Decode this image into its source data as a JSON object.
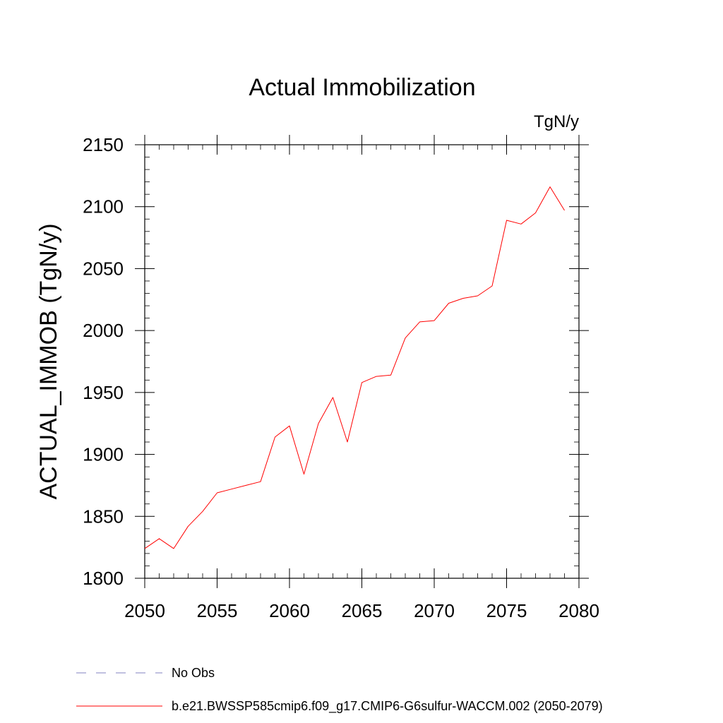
{
  "chart_data": {
    "type": "line",
    "title": "Actual Immobilization",
    "units_label": "TgN/y",
    "xlabel": "",
    "ylabel": "ACTUAL_IMMOB  (TgN/y)",
    "xlim": [
      2050,
      2080
    ],
    "ylim": [
      1800,
      2150
    ],
    "x_ticks": [
      2050,
      2055,
      2060,
      2065,
      2070,
      2075,
      2080
    ],
    "x_tick_labels": [
      "2050",
      "2055",
      "2060",
      "2065",
      "2070",
      "2075",
      "2080"
    ],
    "y_ticks": [
      1800,
      1850,
      1900,
      1950,
      2000,
      2050,
      2100,
      2150
    ],
    "y_tick_labels": [
      "1800",
      "1850",
      "1900",
      "1950",
      "2000",
      "2050",
      "2100",
      "2150"
    ],
    "grid": false,
    "x": [
      2050,
      2051,
      2052,
      2053,
      2054,
      2055,
      2056,
      2057,
      2058,
      2059,
      2060,
      2061,
      2062,
      2063,
      2064,
      2065,
      2066,
      2067,
      2068,
      2069,
      2070,
      2071,
      2072,
      2073,
      2074,
      2075,
      2076,
      2077,
      2078,
      2079
    ],
    "series": [
      {
        "name": "b.e21.BWSSP585cmip6.f09_g17.CMIP6-G6sulfur-WACCM.002 (2050-2079)",
        "color": "#ff0000",
        "values": [
          1824,
          1832,
          1824,
          1842,
          1854,
          1869,
          1872,
          1875,
          1878,
          1914,
          1923,
          1884,
          1925,
          1946,
          1910,
          1958,
          1963,
          1964,
          1994,
          2007,
          2008,
          2022,
          2026,
          2028,
          2036,
          2089,
          2086,
          2095,
          2116,
          2097
        ]
      }
    ],
    "legend": {
      "placement": "bottom-left",
      "entries": [
        {
          "label": "No Obs",
          "color": "#8080c0",
          "style": "dashed"
        },
        {
          "label": "b.e21.BWSSP585cmip6.f09_g17.CMIP6-G6sulfur-WACCM.002 (2050-2079)",
          "color": "#ff0000",
          "style": "solid"
        }
      ]
    }
  }
}
